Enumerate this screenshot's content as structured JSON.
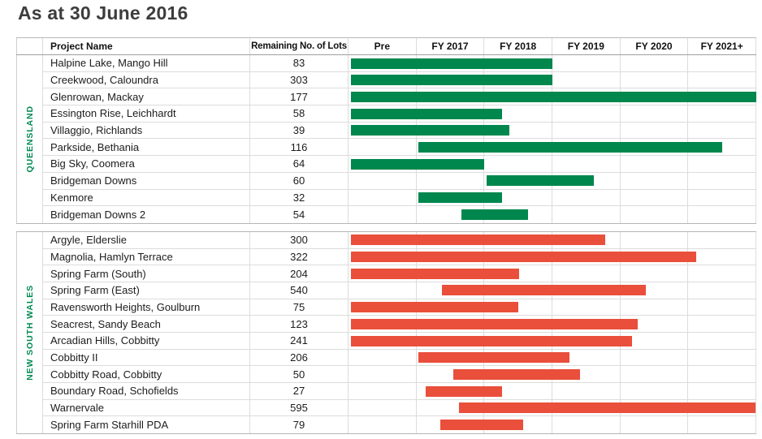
{
  "title": "As at 30 June 2016",
  "table": {
    "headers": {
      "project": "Project Name",
      "lots": "Remaining No. of Lots",
      "timeline": [
        "Pre",
        "FY 2017",
        "FY 2018",
        "FY 2019",
        "FY 2020",
        "FY 2021+"
      ]
    }
  },
  "colors": {
    "qld_bar_green": "#00874D",
    "nsw_bar_red": "#E94F3B",
    "state_label_green": "#008A50",
    "title_gray": "#3D3D3D"
  },
  "chart_data": {
    "type": "bar",
    "variant": "horizontal-gantt-schedule",
    "title": "As at 30 June 2016",
    "x_axis": {
      "columns": [
        "Pre",
        "FY 2017",
        "FY 2018",
        "FY 2019",
        "FY 2020",
        "FY 2021+"
      ],
      "units": "timeline column index; 0 = start of Pre, 6 = end of FY 2021+",
      "range": [
        0,
        6
      ],
      "grid": true
    },
    "value_column_header": "Remaining No. of Lots",
    "sections": [
      {
        "state": "QUEENSLAND",
        "bar_color": "#00874D",
        "projects": [
          {
            "name": "Halpine Lake, Mango Hill",
            "remaining_lots": 83,
            "bar_start": 0,
            "bar_end": 3.0
          },
          {
            "name": "Creekwood, Caloundra",
            "remaining_lots": 303,
            "bar_start": 0,
            "bar_end": 3.0
          },
          {
            "name": "Glenrowan, Mackay",
            "remaining_lots": 177,
            "bar_start": 0,
            "bar_end": 6.0
          },
          {
            "name": "Essington Rise, Leichhardt",
            "remaining_lots": 58,
            "bar_start": 0,
            "bar_end": 2.26
          },
          {
            "name": "Villaggio, Richlands",
            "remaining_lots": 39,
            "bar_start": 0,
            "bar_end": 2.37
          },
          {
            "name": "Parkside, Bethania",
            "remaining_lots": 116,
            "bar_start": 1.0,
            "bar_end": 5.5
          },
          {
            "name": "Big Sky, Coomera",
            "remaining_lots": 64,
            "bar_start": 0,
            "bar_end": 2.0
          },
          {
            "name": "Bridgeman Downs",
            "remaining_lots": 60,
            "bar_start": 2.0,
            "bar_end": 3.62
          },
          {
            "name": "Kenmore",
            "remaining_lots": 32,
            "bar_start": 1.0,
            "bar_end": 2.26
          },
          {
            "name": "Bridgeman Downs 2",
            "remaining_lots": 54,
            "bar_start": 1.63,
            "bar_end": 2.65
          }
        ]
      },
      {
        "state": "NEW SOUTH WALES",
        "bar_color": "#E94F3B",
        "projects": [
          {
            "name": "Argyle, Elderslie",
            "remaining_lots": 300,
            "bar_start": 0,
            "bar_end": 3.78
          },
          {
            "name": "Magnolia, Hamlyn Terrace",
            "remaining_lots": 322,
            "bar_start": 0,
            "bar_end": 5.12
          },
          {
            "name": "Spring Farm (South)",
            "remaining_lots": 204,
            "bar_start": 0,
            "bar_end": 2.52
          },
          {
            "name": "Spring Farm (East)",
            "remaining_lots": 540,
            "bar_start": 1.35,
            "bar_end": 4.38
          },
          {
            "name": "Ravensworth Heights, Goulburn",
            "remaining_lots": 75,
            "bar_start": 0,
            "bar_end": 2.5
          },
          {
            "name": "Seacrest, Sandy Beach",
            "remaining_lots": 123,
            "bar_start": 0,
            "bar_end": 4.26
          },
          {
            "name": "Arcadian Hills, Cobbitty",
            "remaining_lots": 241,
            "bar_start": 0,
            "bar_end": 4.18
          },
          {
            "name": "Cobbitty II",
            "remaining_lots": 206,
            "bar_start": 1.0,
            "bar_end": 3.26
          },
          {
            "name": "Cobbitty Road, Cobbitty",
            "remaining_lots": 50,
            "bar_start": 1.51,
            "bar_end": 3.41
          },
          {
            "name": "Boundary Road, Schofields",
            "remaining_lots": 27,
            "bar_start": 1.11,
            "bar_end": 2.27
          },
          {
            "name": "Warnervale",
            "remaining_lots": 595,
            "bar_start": 1.6,
            "bar_end": 6.0
          },
          {
            "name": "Spring Farm Starhill PDA",
            "remaining_lots": 79,
            "bar_start": 1.32,
            "bar_end": 2.57
          }
        ]
      }
    ]
  }
}
